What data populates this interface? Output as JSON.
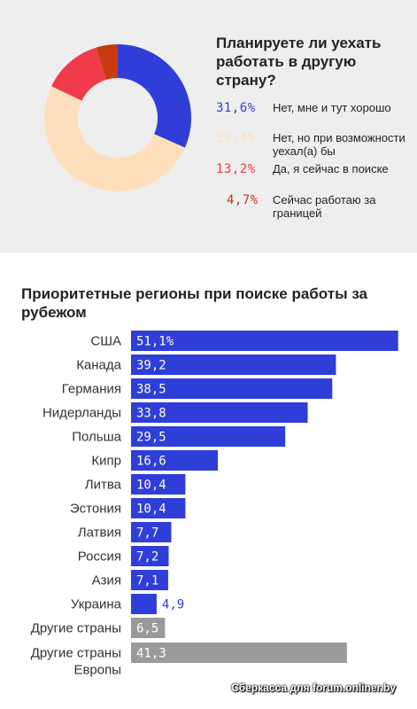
{
  "colors": {
    "blue": "#2f3ed8",
    "peach": "#fde0bb",
    "red": "#ef3b4a",
    "brown": "#c83a12",
    "gray": "#9a9a9a",
    "panel": "#eeeeee"
  },
  "chart_data": [
    {
      "type": "pie",
      "donut": true,
      "title": "Планируете ли уехать работать в другую страну?",
      "slices": [
        {
          "value_label": "31,6%",
          "value": 31.6,
          "label": "Нет, мне и тут хорошо",
          "color": "#2f3ed8"
        },
        {
          "value_label": "50,4%",
          "value": 50.4,
          "label": "Нет, но при возмож­ности уехал(а) бы",
          "color": "#fde0bb"
        },
        {
          "value_label": "13,2%",
          "value": 13.2,
          "label": "Да, я сейчас в поиске",
          "color": "#ef3b4a"
        },
        {
          "value_label": "4,7%",
          "value": 4.7,
          "label": "Сейчас работаю за границей",
          "color": "#c83a12"
        }
      ],
      "legend": "right"
    },
    {
      "type": "bar",
      "orientation": "horizontal",
      "title": "Приоритетные регионы при поиске работы за рубежом",
      "xlim": [
        0,
        52
      ],
      "bars": [
        {
          "category": "США",
          "value": 51.1,
          "value_label": "51,1%",
          "color": "#2f3ed8"
        },
        {
          "category": "Канада",
          "value": 39.2,
          "value_label": "39,2",
          "color": "#2f3ed8"
        },
        {
          "category": "Германия",
          "value": 38.5,
          "value_label": "38,5",
          "color": "#2f3ed8"
        },
        {
          "category": "Нидерланды",
          "value": 33.8,
          "value_label": "33,8",
          "color": "#2f3ed8"
        },
        {
          "category": "Польша",
          "value": 29.5,
          "value_label": "29,5",
          "color": "#2f3ed8"
        },
        {
          "category": "Кипр",
          "value": 16.6,
          "value_label": "16,6",
          "color": "#2f3ed8"
        },
        {
          "category": "Литва",
          "value": 10.4,
          "value_label": "10,4",
          "color": "#2f3ed8"
        },
        {
          "category": "Эстония",
          "value": 10.4,
          "value_label": "10,4",
          "color": "#2f3ed8"
        },
        {
          "category": "Латвия",
          "value": 7.7,
          "value_label": "7,7",
          "color": "#2f3ed8"
        },
        {
          "category": "Россия",
          "value": 7.2,
          "value_label": "7,2",
          "color": "#2f3ed8"
        },
        {
          "category": "Азия",
          "value": 7.1,
          "value_label": "7,1",
          "color": "#2f3ed8"
        },
        {
          "category": "Украина",
          "value": 4.9,
          "value_label": "4,9",
          "color": "#2f3ed8"
        },
        {
          "category": "Другие страны",
          "value": 6.5,
          "value_label": "6,5",
          "color": "#9a9a9a"
        },
        {
          "category": "Другие страны Европы",
          "category_lines": [
            "Другие страны",
            "Европы"
          ],
          "value": 41.3,
          "value_label": "41,3",
          "color": "#9a9a9a"
        }
      ]
    }
  ],
  "watermark": "Сберкасса для forum.onliner.by"
}
